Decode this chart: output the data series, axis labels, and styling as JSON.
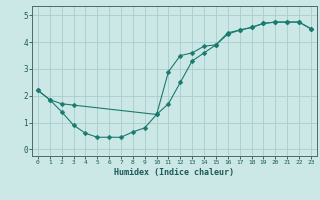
{
  "title": "",
  "xlabel": "Humidex (Indice chaleur)",
  "ylabel": "",
  "bg_color": "#cce8e6",
  "grid_color": "#aacccc",
  "line_color": "#1a7a6e",
  "xlim": [
    -0.5,
    23.5
  ],
  "ylim": [
    -0.25,
    5.35
  ],
  "yticks": [
    0,
    1,
    2,
    3,
    4,
    5
  ],
  "xticks": [
    0,
    1,
    2,
    3,
    4,
    5,
    6,
    7,
    8,
    9,
    10,
    11,
    12,
    13,
    14,
    15,
    16,
    17,
    18,
    19,
    20,
    21,
    22,
    23
  ],
  "curve1_x": [
    0,
    1,
    2,
    3,
    4,
    5,
    6,
    7,
    8,
    9,
    10,
    11,
    12,
    13,
    14,
    15,
    16,
    17,
    18,
    19,
    20,
    21,
    22,
    23
  ],
  "curve1_y": [
    2.2,
    1.85,
    1.4,
    0.9,
    0.6,
    0.45,
    0.45,
    0.45,
    0.65,
    0.8,
    1.3,
    1.7,
    2.5,
    3.3,
    3.6,
    3.9,
    4.35,
    4.45,
    4.55,
    4.7,
    4.75,
    4.75,
    4.75,
    4.5
  ],
  "curve2_x": [
    0,
    1,
    2,
    3,
    10,
    11,
    12,
    13,
    14,
    15,
    16,
    17,
    18,
    19,
    20,
    21,
    22,
    23
  ],
  "curve2_y": [
    2.2,
    1.85,
    1.7,
    1.65,
    1.3,
    2.9,
    3.5,
    3.6,
    3.85,
    3.9,
    4.3,
    4.45,
    4.55,
    4.7,
    4.75,
    4.75,
    4.75,
    4.5
  ]
}
